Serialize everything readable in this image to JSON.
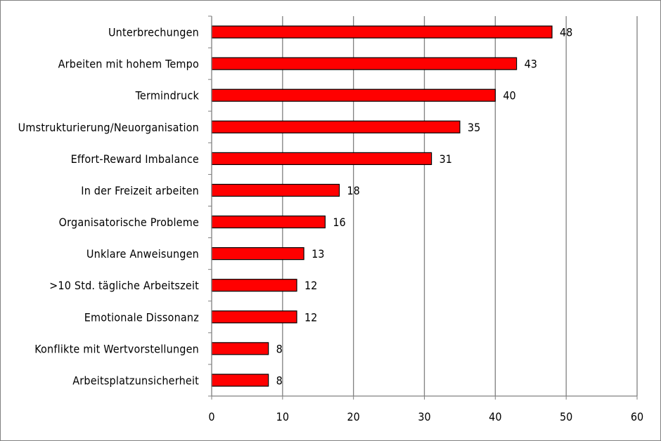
{
  "colors": {
    "bar_fill": "#ff0000",
    "bar_stroke": "#000000",
    "gridline": "#808080",
    "axis": "#808080",
    "background": "#ffffff"
  },
  "chart_data": {
    "type": "bar",
    "orientation": "horizontal",
    "categories": [
      "Unterbrechungen",
      "Arbeiten mit hohem Tempo",
      "Termindruck",
      "Umstrukturierung/Neuorganisation",
      "Effort-Reward Imbalance",
      "In der Freizeit arbeiten",
      "Organisatorische Probleme",
      "Unklare Anweisungen",
      ">10 Std. tägliche Arbeitszeit",
      "Emotionale Dissonanz",
      "Konflikte mit Wertvorstellungen",
      "Arbeitsplatzunsicherheit"
    ],
    "values": [
      48,
      43,
      40,
      35,
      31,
      18,
      16,
      13,
      12,
      12,
      8,
      8
    ],
    "data_labels": [
      "48",
      "43",
      "40",
      "35",
      "31",
      "18",
      "16",
      "13",
      "12",
      "12",
      "8",
      "8"
    ],
    "xlim": [
      0,
      60
    ],
    "xticks": [
      "0",
      "10",
      "20",
      "30",
      "40",
      "50",
      "60"
    ],
    "title": "",
    "xlabel": "",
    "ylabel": "",
    "grid": "vertical major gridlines",
    "legend": "none"
  }
}
